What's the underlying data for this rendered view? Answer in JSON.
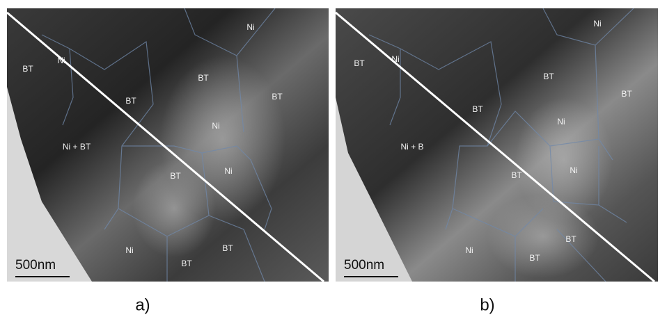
{
  "panels": [
    {
      "caption": "a)",
      "scale_bar": "500nm",
      "labels": [
        "BT",
        "Ni",
        "BT",
        "BT",
        "Ni",
        "BT",
        "Ni",
        "Ni + BT",
        "BT",
        "Ni",
        "Ni",
        "BT",
        "BT"
      ]
    },
    {
      "caption": "b)",
      "scale_bar": "500nm",
      "labels": [
        "BT",
        "Ni",
        "BT",
        "BT",
        "Ni",
        "BT",
        "Ni",
        "Ni + B",
        "BT",
        "Ni",
        "Ni",
        "BT",
        "BT"
      ]
    }
  ]
}
